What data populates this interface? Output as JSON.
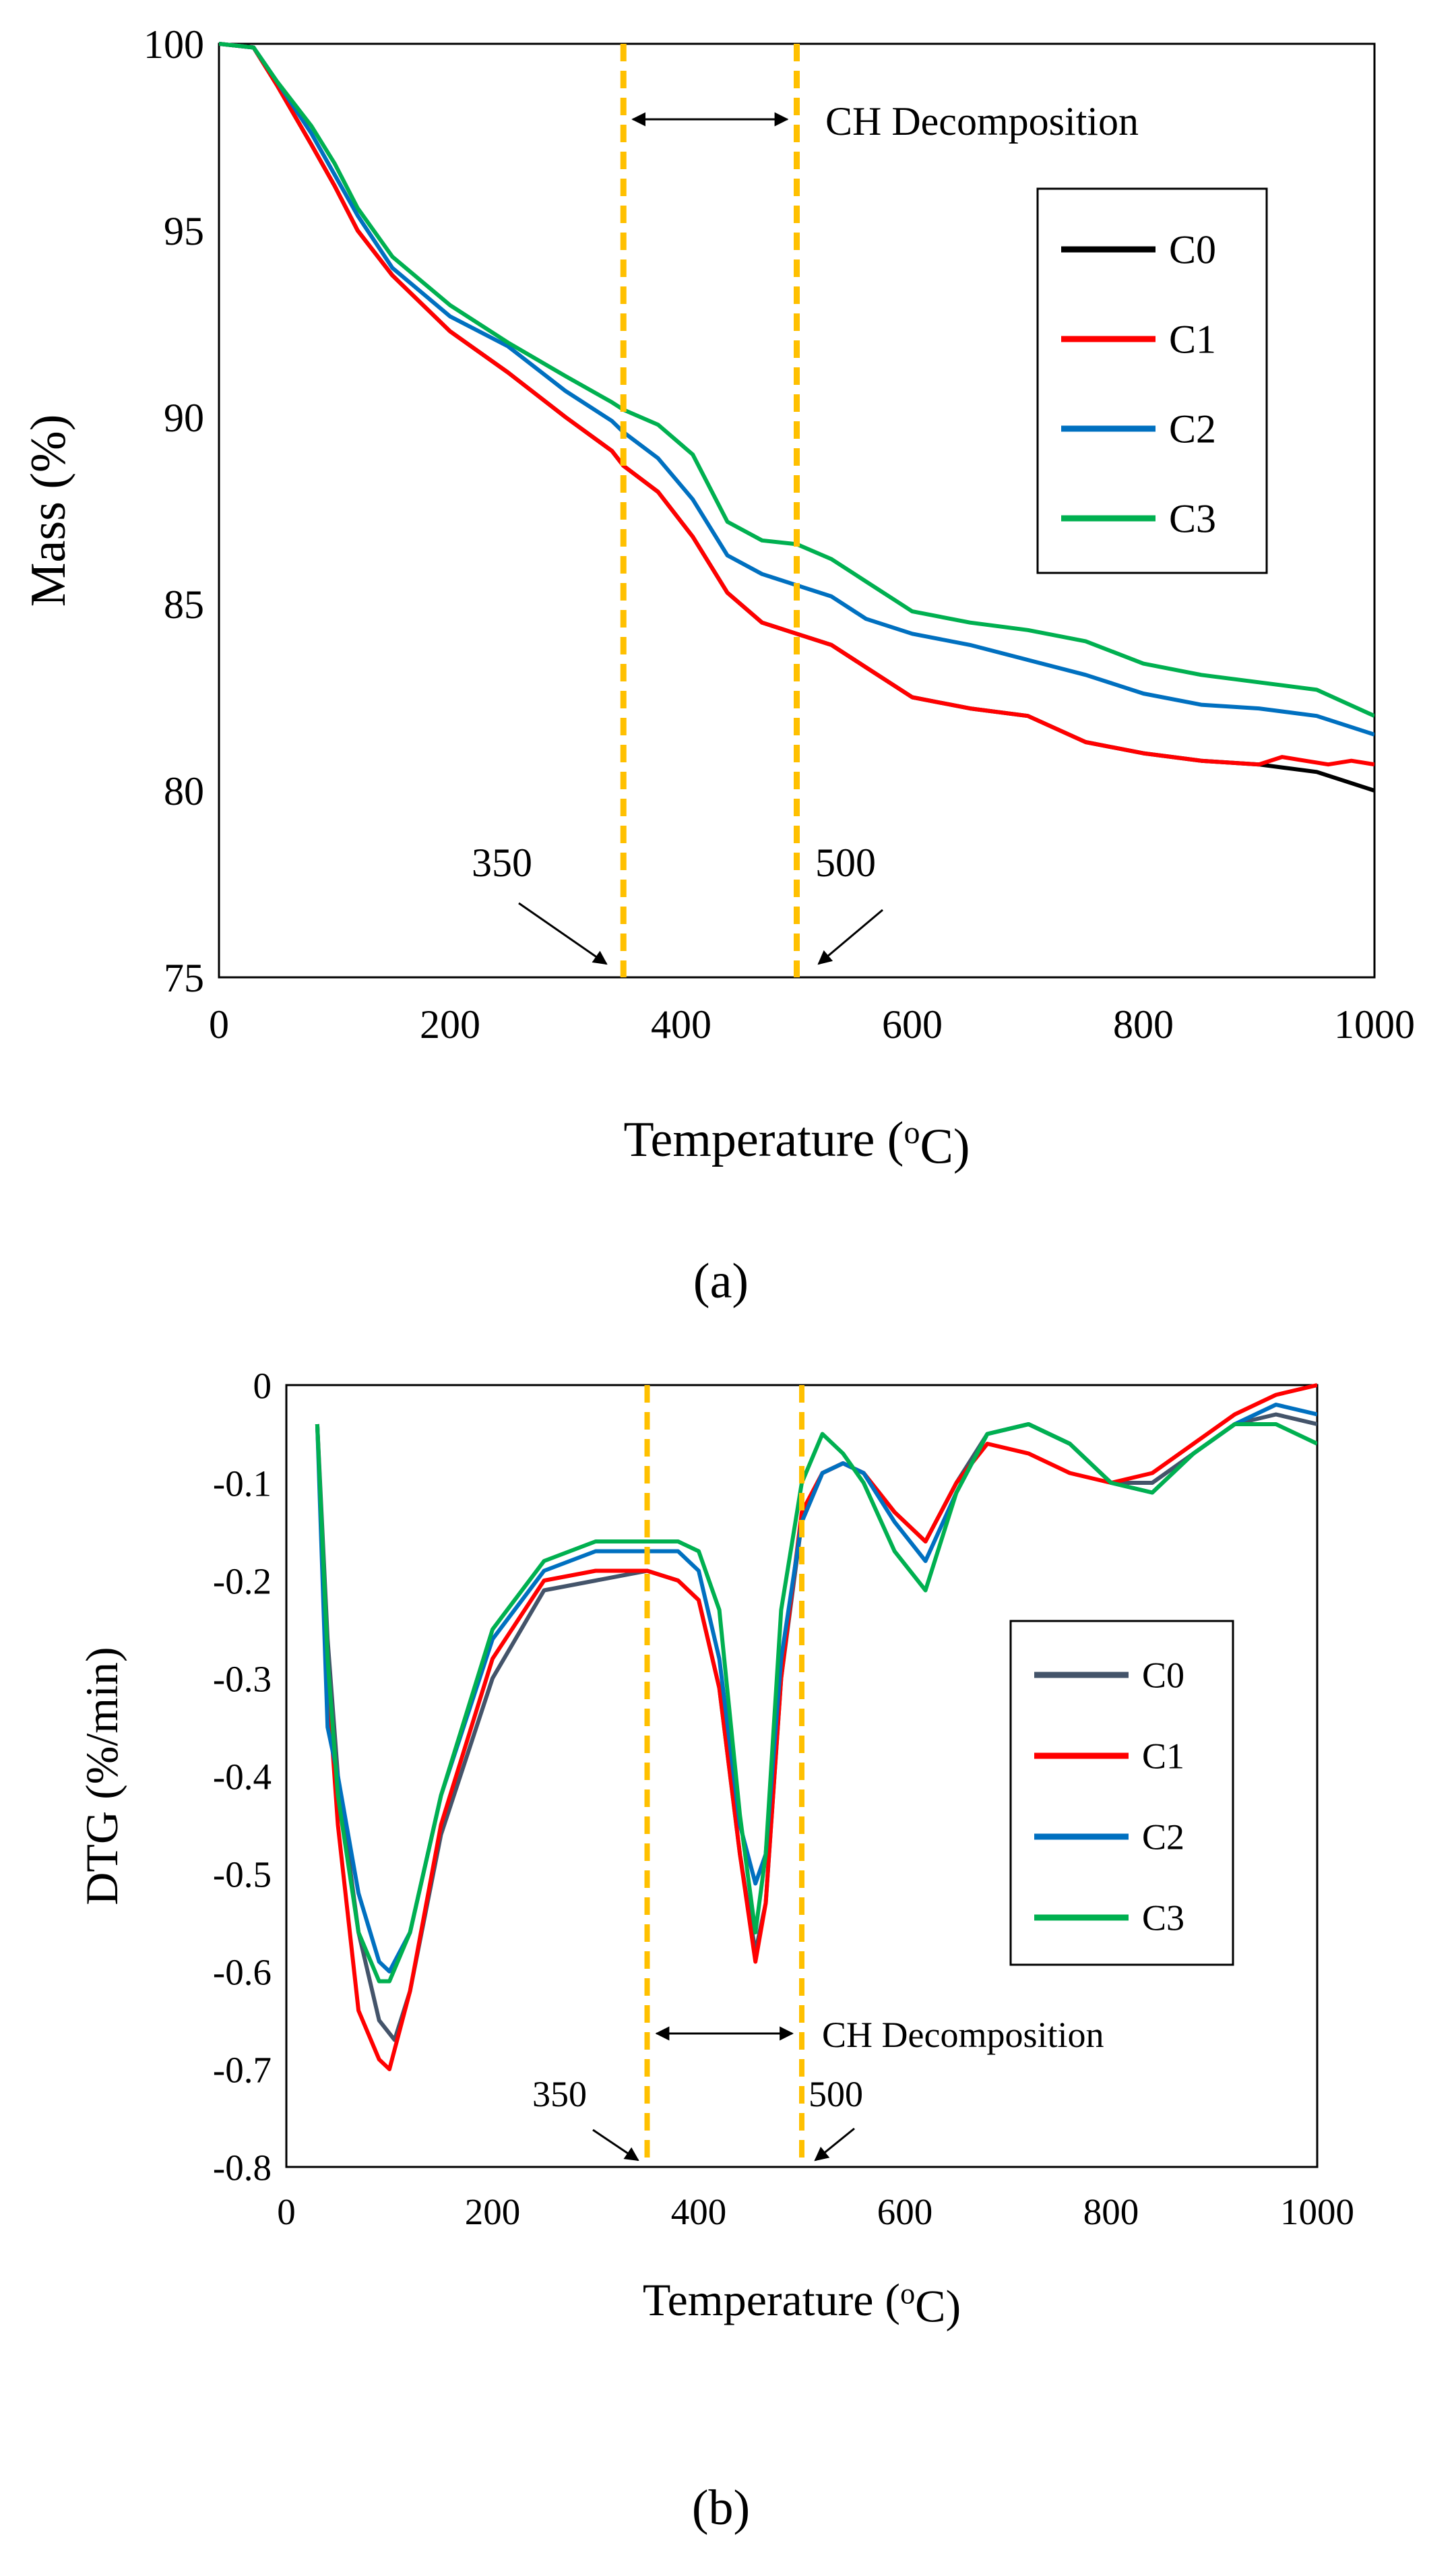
{
  "figure": {
    "label_a": "(a)",
    "label_b": "(b)"
  },
  "chart_data": [
    {
      "id": "a",
      "type": "line",
      "title": "",
      "xlabel": "Temperature (oC)",
      "ylabel": "Mass (%)",
      "xlim": [
        0,
        1000
      ],
      "ylim": [
        75,
        100
      ],
      "xticks": [
        0,
        200,
        400,
        600,
        800,
        1000
      ],
      "yticks": [
        75,
        80,
        85,
        90,
        95,
        100
      ],
      "legend": "right",
      "colors": {
        "C0": "#000000",
        "C1": "#ff0000",
        "C2": "#0070c0",
        "C3": "#00b050",
        "marker": "#ffc000"
      },
      "vlines": [
        350,
        500
      ],
      "annotations": {
        "band": "CH Decomposition",
        "left": "350",
        "right": "500"
      },
      "series": [
        {
          "name": "C0",
          "x": [
            0,
            30,
            50,
            80,
            100,
            120,
            150,
            200,
            250,
            300,
            340,
            350,
            380,
            410,
            440,
            470,
            500,
            530,
            560,
            600,
            650,
            700,
            750,
            800,
            850,
            900,
            950,
            1000
          ],
          "values": [
            100,
            99.9,
            98.9,
            97.3,
            96.2,
            95.0,
            93.8,
            92.3,
            91.2,
            90.0,
            89.1,
            88.7,
            88.0,
            86.8,
            85.3,
            84.5,
            84.2,
            83.9,
            83.3,
            82.5,
            82.2,
            82.0,
            81.3,
            81.0,
            80.8,
            80.7,
            80.5,
            80.0
          ]
        },
        {
          "name": "C1",
          "x": [
            0,
            30,
            50,
            80,
            100,
            120,
            150,
            200,
            250,
            300,
            340,
            350,
            380,
            410,
            440,
            470,
            500,
            530,
            560,
            600,
            650,
            700,
            750,
            800,
            850,
            900,
            920,
            940,
            960,
            980,
            1000
          ],
          "values": [
            100,
            99.9,
            98.9,
            97.3,
            96.2,
            95.0,
            93.8,
            92.3,
            91.2,
            90.0,
            89.1,
            88.7,
            88.0,
            86.8,
            85.3,
            84.5,
            84.2,
            83.9,
            83.3,
            82.5,
            82.2,
            82.0,
            81.3,
            81.0,
            80.8,
            80.7,
            80.9,
            80.8,
            80.7,
            80.8,
            80.7
          ]
        },
        {
          "name": "C2",
          "x": [
            0,
            30,
            50,
            80,
            100,
            120,
            150,
            200,
            250,
            300,
            340,
            350,
            380,
            410,
            440,
            470,
            500,
            530,
            560,
            600,
            650,
            700,
            750,
            800,
            850,
            900,
            950,
            1000
          ],
          "values": [
            100,
            99.9,
            99.0,
            97.6,
            96.5,
            95.4,
            94.0,
            92.7,
            91.9,
            90.7,
            89.9,
            89.6,
            88.9,
            87.8,
            86.3,
            85.8,
            85.5,
            85.2,
            84.6,
            84.2,
            83.9,
            83.5,
            83.1,
            82.6,
            82.3,
            82.2,
            82.0,
            81.5
          ]
        },
        {
          "name": "C3",
          "x": [
            0,
            30,
            50,
            80,
            100,
            120,
            150,
            200,
            250,
            300,
            340,
            350,
            380,
            410,
            440,
            470,
            500,
            530,
            560,
            600,
            650,
            700,
            750,
            800,
            850,
            900,
            950,
            1000
          ],
          "values": [
            100,
            99.9,
            99.0,
            97.8,
            96.8,
            95.6,
            94.3,
            93.0,
            92.0,
            91.1,
            90.4,
            90.2,
            89.8,
            89.0,
            87.2,
            86.7,
            86.6,
            86.2,
            85.6,
            84.8,
            84.5,
            84.3,
            84.0,
            83.4,
            83.1,
            82.9,
            82.7,
            82.0
          ]
        }
      ]
    },
    {
      "id": "b",
      "type": "line",
      "title": "",
      "xlabel": "Temperature (oC)",
      "ylabel": "DTG (%/min)",
      "xlim": [
        0,
        1000
      ],
      "ylim": [
        -0.8,
        0
      ],
      "xticks": [
        0,
        200,
        400,
        600,
        800,
        1000
      ],
      "yticks": [
        0,
        -0.1,
        -0.2,
        -0.3,
        -0.4,
        -0.5,
        -0.6,
        -0.7,
        -0.8
      ],
      "legend": "right",
      "colors": {
        "C0": "#44546a",
        "C1": "#ff0000",
        "C2": "#0070c0",
        "C3": "#00b050",
        "marker": "#ffc000"
      },
      "vlines": [
        350,
        500
      ],
      "annotations": {
        "band": "CH Decomposition",
        "left": "350",
        "right": "500"
      },
      "series": [
        {
          "name": "C0",
          "x": [
            30,
            40,
            50,
            70,
            90,
            105,
            120,
            150,
            200,
            250,
            300,
            350,
            380,
            400,
            420,
            440,
            455,
            465,
            480,
            500,
            520,
            540,
            560,
            590,
            620,
            650,
            680,
            720,
            760,
            800,
            840,
            880,
            920,
            960,
            1000
          ],
          "values": [
            -0.04,
            -0.26,
            -0.4,
            -0.56,
            -0.65,
            -0.67,
            -0.62,
            -0.46,
            -0.3,
            -0.21,
            -0.2,
            -0.19,
            -0.2,
            -0.22,
            -0.31,
            -0.48,
            -0.58,
            -0.53,
            -0.3,
            -0.14,
            -0.09,
            -0.08,
            -0.09,
            -0.13,
            -0.16,
            -0.1,
            -0.05,
            -0.04,
            -0.06,
            -0.1,
            -0.1,
            -0.07,
            -0.04,
            -0.03,
            -0.04
          ]
        },
        {
          "name": "C1",
          "x": [
            30,
            40,
            50,
            70,
            90,
            100,
            120,
            150,
            200,
            250,
            300,
            350,
            380,
            400,
            420,
            440,
            455,
            465,
            480,
            500,
            520,
            540,
            560,
            590,
            620,
            650,
            680,
            720,
            760,
            800,
            840,
            880,
            920,
            960,
            1000
          ],
          "values": [
            -0.04,
            -0.3,
            -0.45,
            -0.64,
            -0.69,
            -0.7,
            -0.62,
            -0.45,
            -0.28,
            -0.2,
            -0.19,
            -0.19,
            -0.2,
            -0.22,
            -0.31,
            -0.48,
            -0.59,
            -0.53,
            -0.3,
            -0.13,
            -0.09,
            -0.08,
            -0.09,
            -0.13,
            -0.16,
            -0.1,
            -0.06,
            -0.07,
            -0.09,
            -0.1,
            -0.09,
            -0.06,
            -0.03,
            -0.01,
            0
          ]
        },
        {
          "name": "C2",
          "x": [
            30,
            40,
            50,
            70,
            90,
            100,
            120,
            150,
            200,
            250,
            300,
            350,
            380,
            400,
            420,
            440,
            455,
            465,
            480,
            500,
            520,
            540,
            560,
            590,
            620,
            650,
            680,
            720,
            760,
            800,
            840,
            880,
            920,
            960,
            1000
          ],
          "values": [
            -0.04,
            -0.35,
            -0.4,
            -0.52,
            -0.59,
            -0.6,
            -0.56,
            -0.42,
            -0.26,
            -0.19,
            -0.17,
            -0.17,
            -0.17,
            -0.19,
            -0.28,
            -0.45,
            -0.51,
            -0.48,
            -0.28,
            -0.14,
            -0.09,
            -0.08,
            -0.09,
            -0.14,
            -0.18,
            -0.11,
            -0.05,
            -0.04,
            -0.06,
            -0.1,
            -0.11,
            -0.07,
            -0.04,
            -0.02,
            -0.03
          ]
        },
        {
          "name": "C3",
          "x": [
            30,
            40,
            50,
            70,
            90,
            100,
            120,
            150,
            200,
            250,
            300,
            350,
            380,
            400,
            420,
            440,
            455,
            465,
            480,
            500,
            520,
            540,
            560,
            590,
            620,
            650,
            680,
            720,
            760,
            800,
            840,
            880,
            920,
            960,
            1000
          ],
          "values": [
            -0.04,
            -0.28,
            -0.42,
            -0.56,
            -0.61,
            -0.61,
            -0.56,
            -0.42,
            -0.25,
            -0.18,
            -0.16,
            -0.16,
            -0.16,
            -0.17,
            -0.23,
            -0.44,
            -0.56,
            -0.48,
            -0.23,
            -0.1,
            -0.05,
            -0.07,
            -0.1,
            -0.17,
            -0.21,
            -0.11,
            -0.05,
            -0.04,
            -0.06,
            -0.1,
            -0.11,
            -0.07,
            -0.04,
            -0.04,
            -0.06
          ]
        }
      ]
    }
  ]
}
